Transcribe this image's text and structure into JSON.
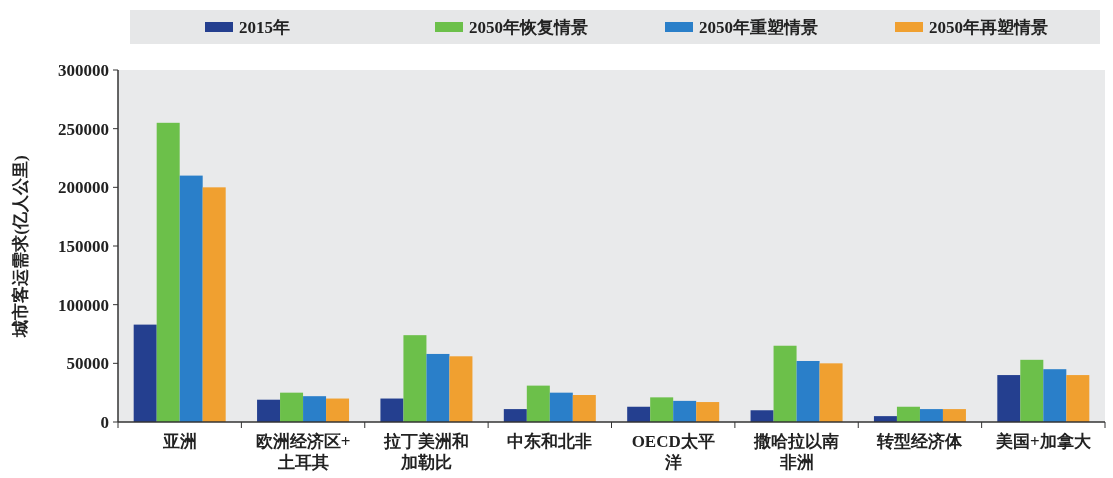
{
  "chart_data": {
    "type": "bar",
    "ylabel": "城市客运需求(亿人公里)",
    "categories": [
      "亚洲",
      "欧洲经济区+土耳其",
      "拉丁美洲和加勒比",
      "中东和北非",
      "OECD太平洋",
      "撒哈拉以南非洲",
      "转型经济体",
      "美国+加拿大"
    ],
    "series": [
      {
        "name": "2015年",
        "color": "#243f8f",
        "values": [
          83000,
          19000,
          20000,
          11000,
          13000,
          10000,
          5000,
          40000
        ]
      },
      {
        "name": "2050年恢复情景",
        "color": "#6cc04a",
        "values": [
          255000,
          25000,
          74000,
          31000,
          21000,
          65000,
          13000,
          53000
        ]
      },
      {
        "name": "2050年重塑情景",
        "color": "#2a7fc9",
        "values": [
          210000,
          22000,
          58000,
          25000,
          18000,
          52000,
          11000,
          45000
        ]
      },
      {
        "name": "2050年再塑情景",
        "color": "#f0a030",
        "values": [
          200000,
          20000,
          56000,
          23000,
          17000,
          50000,
          11000,
          40000
        ]
      }
    ],
    "ylim": [
      0,
      300000
    ],
    "yticks": [
      0,
      50000,
      100000,
      150000,
      200000,
      250000,
      300000
    ],
    "legend": "top"
  }
}
